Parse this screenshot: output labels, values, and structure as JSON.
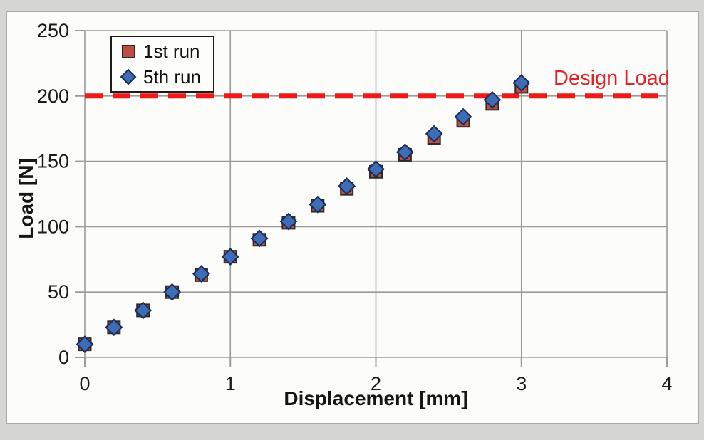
{
  "chart_data": {
    "type": "scatter",
    "title": "",
    "xlabel": "Displacement [mm]",
    "ylabel": "Load [N]",
    "xlim": [
      0,
      4
    ],
    "ylim": [
      0,
      250
    ],
    "x_ticks": [
      0,
      1,
      2,
      3,
      4
    ],
    "y_ticks": [
      0,
      50,
      100,
      150,
      200,
      250
    ],
    "grid": true,
    "legend_position": "top-left",
    "x": [
      0.0,
      0.2,
      0.4,
      0.6,
      0.8,
      1.0,
      1.2,
      1.4,
      1.6,
      1.8,
      2.0,
      2.2,
      2.4,
      2.6,
      2.8,
      3.0
    ],
    "series": [
      {
        "name": "1st run",
        "marker": "square",
        "fill": "#bf4e42",
        "edge": "#2b2b2b",
        "values": [
          10,
          23,
          36,
          50,
          63,
          77,
          90,
          103,
          116,
          129,
          142,
          155,
          168,
          181,
          194,
          207
        ]
      },
      {
        "name": "5th run",
        "marker": "diamond",
        "fill": "#3e6db8",
        "edge": "#1e2b4f",
        "values": [
          10,
          23,
          36,
          50,
          64,
          77,
          91,
          104,
          117,
          131,
          144,
          157,
          171,
          184,
          197,
          210
        ]
      }
    ],
    "reference_line": {
      "label": "Design Load",
      "value": 200,
      "color": "#ee1a1a",
      "label_color": "#e32227",
      "style": "dashed"
    }
  },
  "colors": {
    "grid": "#9b9b9b",
    "tick_text": "#1a1a1a"
  }
}
